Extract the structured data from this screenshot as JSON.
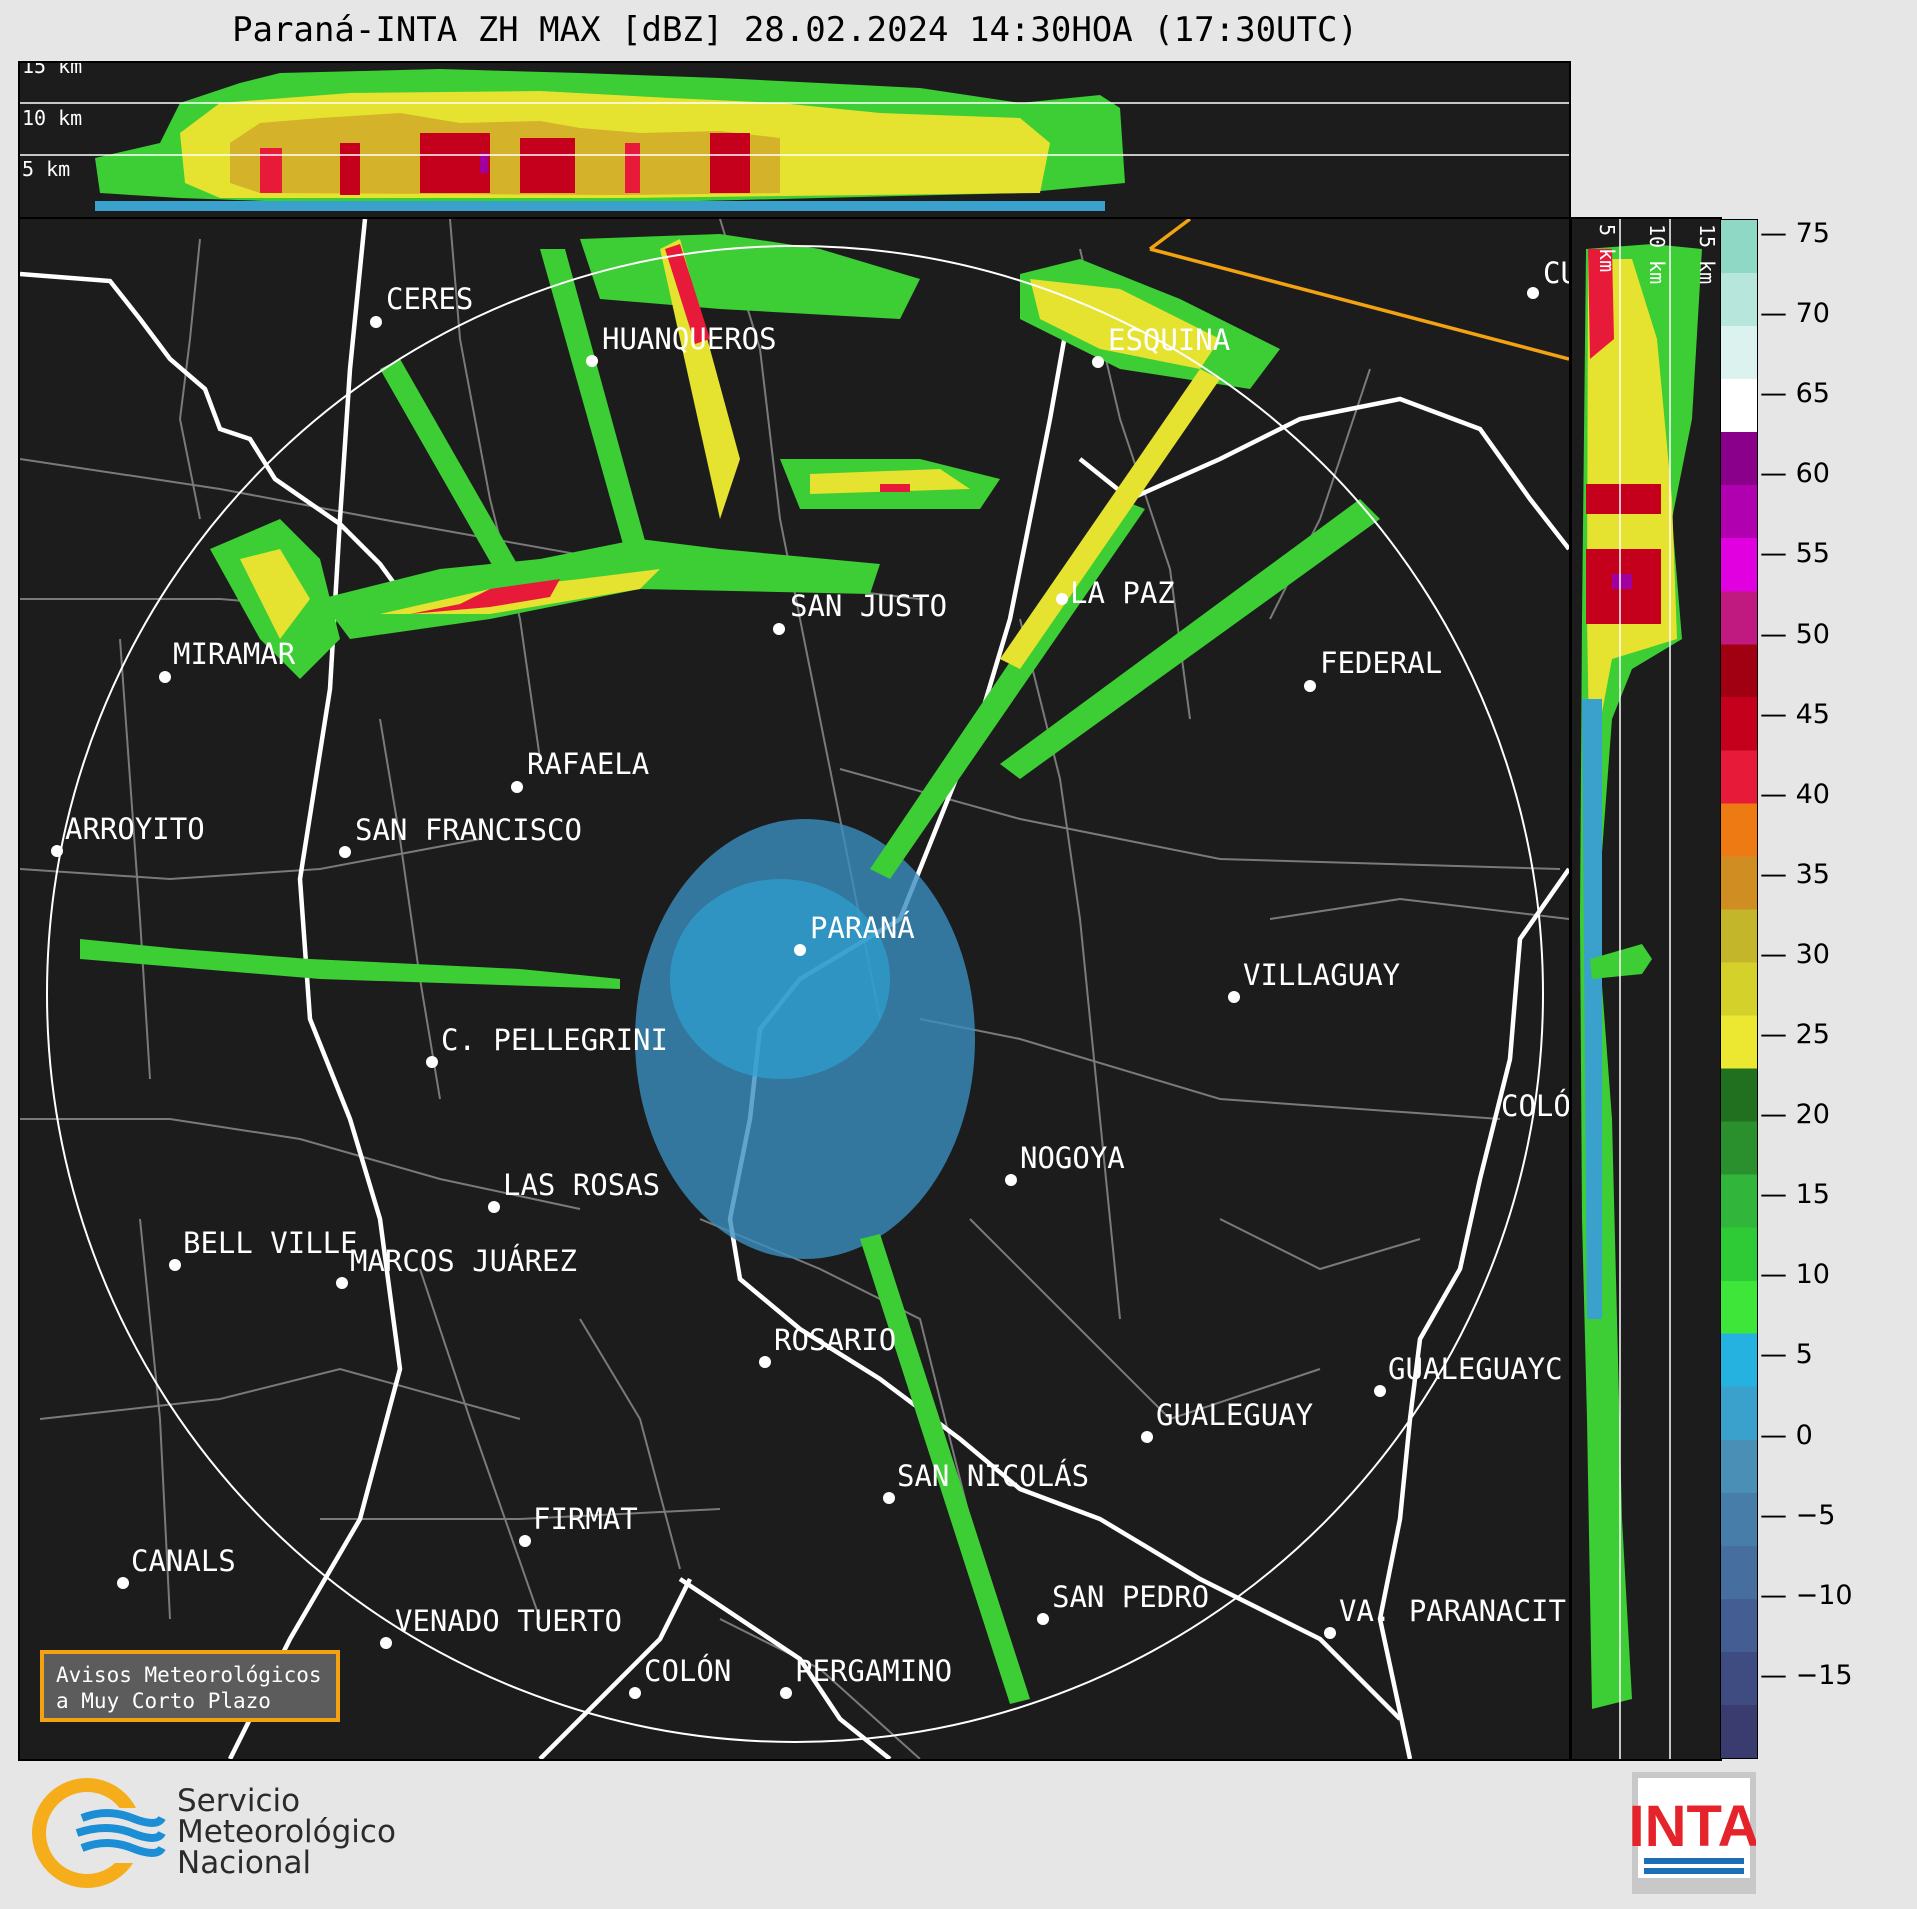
{
  "title": "Paraná-INTA ZH MAX [dBZ] 28.02.2024 14:30HOA (17:30UTC)",
  "top_panel": {
    "altitude_labels": [
      "15 km",
      "10 km",
      "5 km"
    ]
  },
  "side_panel": {
    "altitude_labels": [
      "5 km",
      "10 km",
      "15 km"
    ]
  },
  "colorbar": {
    "unit": "dBZ",
    "ticks": [
      "75",
      "70",
      "65",
      "60",
      "55",
      "50",
      "45",
      "40",
      "35",
      "30",
      "25",
      "20",
      "15",
      "10",
      "5",
      "0",
      "−5",
      "−10",
      "−15"
    ],
    "colors": [
      "#3a3b6e",
      "#3f4c82",
      "#445e93",
      "#466e9f",
      "#477ea9",
      "#4a8fb5",
      "#3aa0cc",
      "#26b2e0",
      "#3fe63a",
      "#2fcb37",
      "#31b53a",
      "#2a902e",
      "#207020",
      "#ece832",
      "#d4d12a",
      "#c4b62a",
      "#d08d22",
      "#ee7a14",
      "#e81a3a",
      "#c4001c",
      "#a00012",
      "#c01a80",
      "#e000e0",
      "#b000b0",
      "#8a008a",
      "#ffffff",
      "#dbf2ee",
      "#b6e6dc",
      "#90d8c6"
    ],
    "value_min": -20,
    "value_max": 76
  },
  "map": {
    "radar_site": "PARANÁ",
    "range_ring": "240 km",
    "cities": [
      {
        "name": "CERES"
      },
      {
        "name": "HUANQUEROS"
      },
      {
        "name": "ESQUINA"
      },
      {
        "name": "CU"
      },
      {
        "name": "LA PAZ"
      },
      {
        "name": "SAN JUSTO"
      },
      {
        "name": "MIRAMAR"
      },
      {
        "name": "FEDERAL"
      },
      {
        "name": "RAFAELA"
      },
      {
        "name": "ARROYITO"
      },
      {
        "name": "SAN FRANCISCO"
      },
      {
        "name": "PARANÁ"
      },
      {
        "name": "VILLAGUAY"
      },
      {
        "name": "C. PELLEGRINI"
      },
      {
        "name": "COLÓ"
      },
      {
        "name": "NOGOYA"
      },
      {
        "name": "LAS ROSAS"
      },
      {
        "name": "BELL VILLE"
      },
      {
        "name": "MARCOS JUÁREZ"
      },
      {
        "name": "ROSARIO"
      },
      {
        "name": "GUALEGUAYC"
      },
      {
        "name": "GUALEGUAY"
      },
      {
        "name": "SAN NICOLÁS"
      },
      {
        "name": "FIRMAT"
      },
      {
        "name": "CANALS"
      },
      {
        "name": "SAN PEDRO"
      },
      {
        "name": "VA. PARANACIT"
      },
      {
        "name": "VENADO TUERTO"
      },
      {
        "name": "COLÓN"
      },
      {
        "name": "PERGAMINO"
      }
    ]
  },
  "avisos": {
    "line1": "Avisos Meteorológicos",
    "line2": "a Muy Corto Plazo"
  },
  "footer": {
    "smn_line1": "Servicio",
    "smn_line2": "Meteorológico",
    "smn_line3": "Nacional",
    "inta_text": "INTA"
  }
}
